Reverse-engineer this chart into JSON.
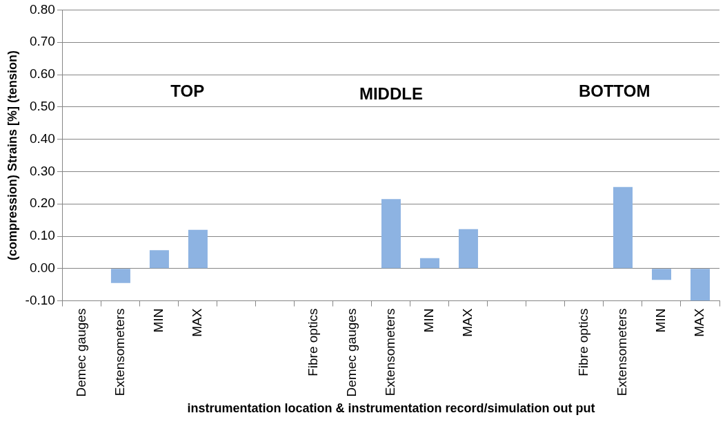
{
  "chart_data": {
    "type": "bar",
    "xlabel": "instrumentation location & instrumentation record/simulation out put",
    "ylabel": "(compression) Strains [%] (tension)",
    "categories": [
      "Demec gauges",
      "Extensometers",
      "MIN",
      "MAX",
      null,
      null,
      "Fibre optics",
      "Demec gauges",
      "Extensometers",
      "MIN",
      "MAX",
      null,
      null,
      "Fibre optics",
      "Extensometers",
      "MIN",
      "MAX"
    ],
    "values": [
      null,
      -0.045,
      0.057,
      0.12,
      null,
      null,
      null,
      null,
      0.215,
      0.032,
      0.122,
      null,
      null,
      null,
      0.252,
      -0.035,
      -0.1
    ],
    "color": "#8db3e2",
    "ylim": [
      -0.1,
      0.8
    ],
    "yticks": [
      {
        "value": -0.1,
        "label": "-0.10"
      },
      {
        "value": 0,
        "label": "0.00"
      },
      {
        "value": 0.1,
        "label": "0.10"
      },
      {
        "value": 0.2,
        "label": "0.20"
      },
      {
        "value": 0.3,
        "label": "0.30"
      },
      {
        "value": 0.4,
        "label": "0.40"
      },
      {
        "value": 0.5,
        "label": "0.50"
      },
      {
        "value": 0.6,
        "label": "0.60"
      },
      {
        "value": 0.7,
        "label": "0.70"
      },
      {
        "value": 0.8,
        "label": "0.80"
      }
    ],
    "grid": "y",
    "annotations": [
      "TOP",
      "MIDDLE",
      "BOTTOM"
    ]
  }
}
